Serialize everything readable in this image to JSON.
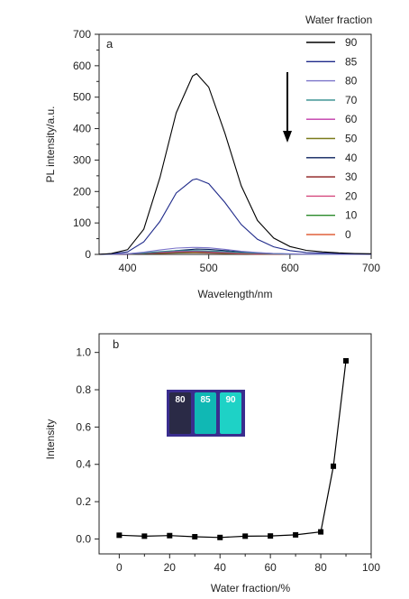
{
  "chart_data": [
    {
      "type": "line",
      "panel_label": "a",
      "xlabel": "Wavelength/nm",
      "ylabel": "PL intensity/a.u.",
      "xlim": [
        365,
        700
      ],
      "ylim": [
        0,
        700
      ],
      "xticks": [
        400,
        500,
        600,
        700
      ],
      "yticks": [
        0,
        100,
        200,
        300,
        400,
        500,
        600,
        700
      ],
      "grid": false,
      "legend_title": "Water fraction",
      "legend_position": "right",
      "annotation": "downward arrow indicating intensity decrease",
      "x": [
        365,
        380,
        400,
        420,
        440,
        460,
        480,
        485,
        500,
        520,
        540,
        560,
        580,
        600,
        620,
        640,
        660,
        680,
        700
      ],
      "series": [
        {
          "name": "90",
          "color": "#000000",
          "values": [
            0,
            3,
            15,
            80,
            245,
            450,
            567,
            575,
            532,
            385,
            218,
            108,
            52,
            25,
            13,
            8,
            5,
            3,
            2
          ]
        },
        {
          "name": "85",
          "color": "#1f2a8a",
          "values": [
            0,
            2,
            8,
            40,
            105,
            195,
            237,
            240,
            225,
            165,
            95,
            48,
            24,
            12,
            6,
            4,
            3,
            2,
            1
          ]
        },
        {
          "name": "80",
          "color": "#7a73c9",
          "values": [
            0,
            1,
            2,
            7,
            14,
            20,
            22,
            22,
            21,
            16,
            10,
            6,
            3,
            2,
            1,
            1,
            0,
            0,
            0
          ]
        },
        {
          "name": "70",
          "color": "#2e8b8b",
          "values": [
            0,
            1,
            2,
            5,
            9,
            12,
            12,
            12,
            11,
            9,
            6,
            4,
            2,
            1,
            1,
            0,
            0,
            0,
            0
          ]
        },
        {
          "name": "60",
          "color": "#c23aa8",
          "values": [
            0,
            1,
            2,
            4,
            7,
            9,
            10,
            10,
            9,
            7,
            5,
            3,
            2,
            1,
            1,
            0,
            0,
            0,
            0
          ]
        },
        {
          "name": "50",
          "color": "#7a7a1a",
          "values": [
            0,
            1,
            2,
            4,
            6,
            8,
            9,
            9,
            8,
            6,
            4,
            3,
            2,
            1,
            0,
            0,
            0,
            0,
            0
          ]
        },
        {
          "name": "40",
          "color": "#0a1f5c",
          "values": [
            0,
            1,
            1,
            3,
            6,
            12,
            16,
            17,
            16,
            12,
            8,
            5,
            3,
            1,
            1,
            0,
            0,
            0,
            0
          ]
        },
        {
          "name": "30",
          "color": "#8b1a1a",
          "values": [
            0,
            1,
            1,
            3,
            5,
            7,
            8,
            8,
            7,
            6,
            4,
            2,
            1,
            1,
            0,
            0,
            0,
            0,
            0
          ]
        },
        {
          "name": "20",
          "color": "#d6497e",
          "values": [
            0,
            1,
            1,
            3,
            5,
            7,
            7,
            7,
            6,
            5,
            3,
            2,
            1,
            1,
            0,
            0,
            0,
            0,
            0
          ]
        },
        {
          "name": "10",
          "color": "#2a8a2a",
          "values": [
            0,
            1,
            1,
            2,
            4,
            5,
            6,
            6,
            5,
            4,
            3,
            2,
            1,
            0,
            0,
            0,
            0,
            0,
            0
          ]
        },
        {
          "name": "0",
          "color": "#e0603a",
          "values": [
            0,
            1,
            1,
            2,
            3,
            4,
            5,
            5,
            4,
            3,
            2,
            1,
            1,
            0,
            0,
            0,
            0,
            0,
            0
          ]
        }
      ]
    },
    {
      "type": "scatter",
      "panel_label": "b",
      "xlabel": "Water fraction/%",
      "ylabel": "Intensity",
      "xlim": [
        -8,
        100
      ],
      "ylim": [
        -0.08,
        1.1
      ],
      "xticks": [
        0,
        20,
        40,
        60,
        80,
        100
      ],
      "yticks": [
        0.0,
        0.2,
        0.4,
        0.6,
        0.8,
        1.0
      ],
      "grid": false,
      "marker": "square",
      "connected": true,
      "x": [
        0,
        10,
        20,
        30,
        40,
        50,
        60,
        70,
        80,
        85,
        90
      ],
      "values": [
        0.02,
        0.015,
        0.018,
        0.012,
        0.008,
        0.015,
        0.016,
        0.022,
        0.038,
        0.39,
        0.955
      ],
      "inset": {
        "labels": [
          "80",
          "85",
          "90"
        ],
        "vial_colors": [
          "#2a2a46",
          "#10b8b4",
          "#1ed2c6"
        ],
        "background": "#3a2d8e"
      }
    }
  ]
}
